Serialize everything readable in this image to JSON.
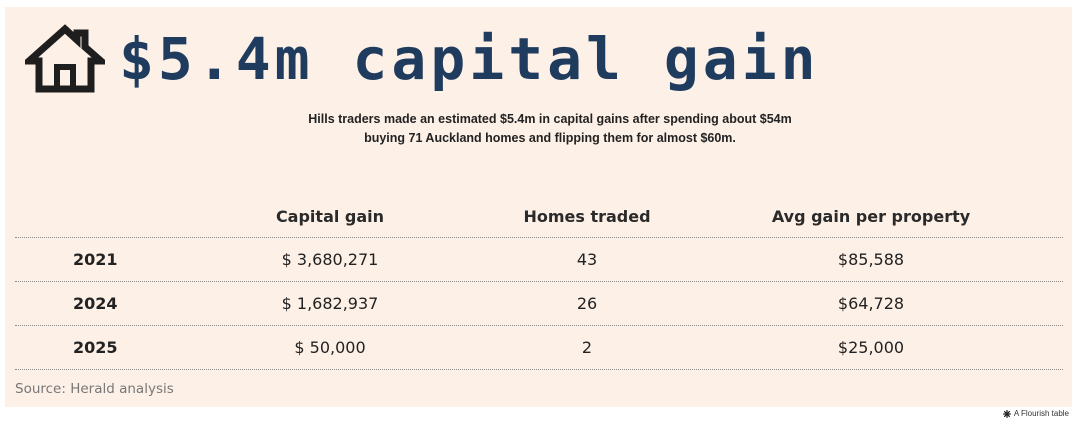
{
  "header": {
    "icon": "house-icon",
    "headline": "$5.4m capital gain"
  },
  "subtitle": "Hills traders made an estimated $5.4m in capital gains after spending about $54m buying 71 Auckland homes and flipping them for almost $60m.",
  "chart_data": {
    "type": "table",
    "columns": [
      "",
      "Capital gain",
      "Homes traded",
      "Avg gain per property"
    ],
    "rows": [
      [
        "2021",
        "$ 3,680,271",
        "43",
        "$85,588"
      ],
      [
        "2024",
        "$ 1,682,937",
        "26",
        "$64,728"
      ],
      [
        "2025",
        "$ 50,000",
        "2",
        "$25,000"
      ]
    ]
  },
  "source": "Source: Herald analysis",
  "credit": {
    "icon": "flourish-asterisk-icon",
    "text": "A Flourish table"
  },
  "colors": {
    "card_background": "#fdf0e7",
    "headline": "#1f3c5f"
  }
}
